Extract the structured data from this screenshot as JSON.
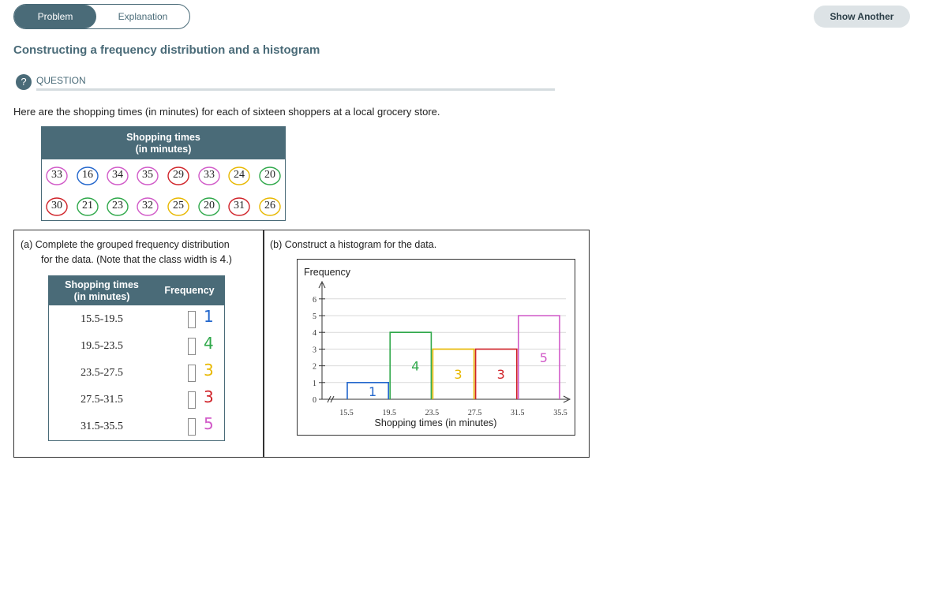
{
  "tabs": {
    "problem": "Problem",
    "explanation": "Explanation"
  },
  "show_another": "Show Another",
  "title": "Constructing a frequency distribution and a histogram",
  "question": {
    "icon": "?",
    "label": "QUESTION"
  },
  "prompt": "Here are the shopping times (in minutes) for each of sixteen shoppers at a local grocery store.",
  "data_table": {
    "header_line1": "Shopping times",
    "header_line2": "(in minutes)",
    "row1": [
      "33",
      "16",
      "34",
      "35",
      "29",
      "33",
      "24",
      "20"
    ],
    "row2": [
      "30",
      "21",
      "23",
      "32",
      "25",
      "20",
      "31",
      "26"
    ],
    "circle_colors_row1": [
      "#d15ac8",
      "#2266cc",
      "#d15ac8",
      "#d15ac8",
      "#d0242a",
      "#d15ac8",
      "#e8b800",
      "#2fa84a"
    ],
    "circle_colors_row2": [
      "#d0242a",
      "#2fa84a",
      "#2fa84a",
      "#d15ac8",
      "#e8b800",
      "#2fa84a",
      "#d0242a",
      "#e8b800"
    ]
  },
  "part_a": {
    "text_line1": "(a) Complete the grouped frequency distribution",
    "text_line2_pre": "for the data. (Note that the class width is ",
    "class_width": "4",
    "text_line2_post": ".)",
    "col1_line1": "Shopping times",
    "col1_line2": "(in minutes)",
    "col2": "Frequency",
    "classes": [
      "15.5-19.5",
      "19.5-23.5",
      "23.5-27.5",
      "27.5-31.5",
      "31.5-35.5"
    ],
    "handwritten": [
      "1",
      "4",
      "3",
      "3",
      "5"
    ],
    "handwritten_colors": [
      "#2266cc",
      "#2fa84a",
      "#e8b800",
      "#d0242a",
      "#d15ac8"
    ]
  },
  "part_b": {
    "text": "(b) Construct a histogram for the data."
  },
  "chart_data": {
    "type": "bar",
    "ylabel": "Frequency",
    "xlabel": "Shopping times (in minutes)",
    "x_ticks": [
      "15.5",
      "19.5",
      "23.5",
      "27.5",
      "31.5",
      "35.5"
    ],
    "y_ticks": [
      "0",
      "1",
      "2",
      "3",
      "4",
      "5",
      "6"
    ],
    "ylim": [
      0,
      6
    ],
    "xlim": [
      15.5,
      35.5
    ],
    "categories": [
      "15.5-19.5",
      "19.5-23.5",
      "23.5-27.5",
      "27.5-31.5",
      "31.5-35.5"
    ],
    "values": [
      1,
      4,
      3,
      3,
      5
    ],
    "bar_colors": [
      "#2266cc",
      "#2fa84a",
      "#e8b800",
      "#d0242a",
      "#d15ac8"
    ],
    "bar_labels": [
      "1",
      "4",
      "3",
      "3",
      "5"
    ],
    "grid": true
  }
}
